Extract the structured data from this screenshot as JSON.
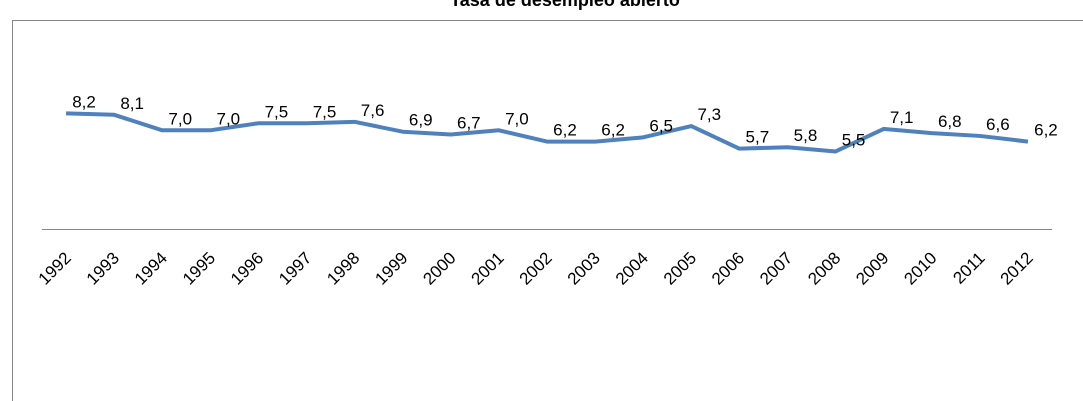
{
  "chart_data": {
    "type": "line",
    "title": "Tasa de desempleo abierto",
    "categories": [
      "1992",
      "1993",
      "1994",
      "1995",
      "1996",
      "1997",
      "1998",
      "1999",
      "2000",
      "2001",
      "2002",
      "2003",
      "2004",
      "2005",
      "2006",
      "2007",
      "2008",
      "2009",
      "2010",
      "2011",
      "2012"
    ],
    "series": [
      {
        "name": "Tasa de desempleo abierto",
        "color": "#4f81bd",
        "values": [
          8.2,
          8.1,
          7.0,
          7.0,
          7.5,
          7.5,
          7.6,
          6.9,
          6.7,
          7.0,
          6.2,
          6.2,
          6.5,
          7.3,
          5.7,
          5.8,
          5.5,
          7.1,
          6.8,
          6.6,
          6.2
        ],
        "value_labels": [
          "8,2",
          "8,1",
          "7,0",
          "7,0",
          "7,5",
          "7,5",
          "7,6",
          "6,9",
          "6,7",
          "7,0",
          "6,2",
          "6,2",
          "6,5",
          "7,3",
          "5,7",
          "5,8",
          "5,5",
          "7,1",
          "6,8",
          "6,6",
          "6,2"
        ]
      }
    ],
    "ylim": [
      0,
      10
    ]
  }
}
